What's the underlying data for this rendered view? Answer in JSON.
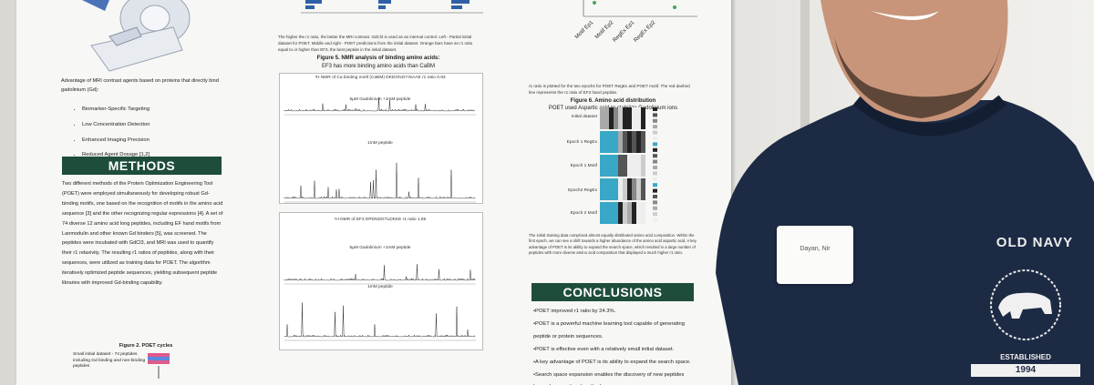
{
  "poster": {
    "intro": {
      "text": "Advantage of MRI contrast agents based on proteins that directly bind gadolinium (Gd):",
      "bullets": [
        "Biomarker-Specific Targeting",
        "Low Concentration Detection",
        "Enhanced Imaging Precision",
        "Reduced Agent Dosage [1,2]"
      ]
    },
    "methods": {
      "heading": "METHODS",
      "text": "Two different methods of the Protein Optimization Engineering Tool (POET) were employed simultaneously for developing robust Gd-binding motifs, one based on the recognition of motifs in the amino acid sequence [3] and the other recognizing regular expressions [4]. A set of 74 diverse 12 amino acid long peptides, including EF hand motifs from Lanmodulin and other known Gd binders [5], was screened. The peptides were incubated with GdCl3, and MRI was used to quantify their r1 relaxivity. The resulting r1 ratios of peptides, along with their sequences, were utilized as training data for POET. The algorithm iteratively optimized peptide sequences, yielding subsequent peptide libraries with improved Gd-binding capability."
    },
    "figure2": {
      "caption": "Figure 2. POET cycles",
      "note": "Small initial dataset - 74 peptides including Gd binding and non-binding peptides"
    },
    "figure4": {
      "caption": "The higher the r1 ratio, the better the MRI contrast. GdCl3 is used as an internal control. Left - Partial initial dataset for POET. Middle and right - POET predictions from the initial dataset. Orange bars have an r1 ratio equal to or higher than EF3, the best peptide in the initial dataset.",
      "axis_labels": [
        "Motif Ep1",
        "Motif Ep2",
        "RegEx Ep1",
        "RegEx Ep2"
      ],
      "note": "r1 ratio is plotted for the two epochs for POET RegEx and POET motif. The red dashed line represents the r1 ratio of EF3 hand peptide."
    },
    "figure5": {
      "title": "Figure 5. NMR analysis of binding amino acids:",
      "subtitle": "EF3 has more binding amino acids than CaBM",
      "panels": [
        {
          "label": "¹H NMR of Ca binding motif (CaBM) DKDGNGYISAAE r1 ratio 0.93",
          "traces": [
            "5µM Gadolinium +1mM peptide",
            "1mM peptide"
          ]
        },
        {
          "label": "¹H NMR of EF3 DPDNDGTLDKKE r1 ratio 1.86",
          "traces": [
            "5µM Gadolinium +1mM peptide",
            "1mM peptide"
          ]
        }
      ]
    },
    "figure6": {
      "title": "Figure 6. Amino acid distribution",
      "subtitle": "POET used Aspartic acid to stabilize Gadolinium ions",
      "rows": [
        "Initial dataset",
        "Epoch 1 RegEx",
        "Epoch 1 Motif",
        "Epoch2 RegEx",
        "Epoch 2 Motif"
      ],
      "note": "The initial training data comprised almost equally distributed amino acid composition. Within the first epoch, we can see a shift towards a higher abundance of the amino acid aspartic acid. A key advantage of POET is its ability to expand the search space, which resulted in a large number of peptides with more diverse amino acid composition that displayed a much higher r1 ratio."
    },
    "conclusions": {
      "heading": "CONCLUSIONS",
      "bullets": [
        "•POET improved r1 ratio by 24.3%.",
        "•POET is a powerful machine learning tool capable of generating peptide or protein sequences.",
        "•POET is effective even with a relatively small initial dataset.",
        "•A key advantage of POET is its ability to expand the search space.",
        "•Search space expansion enables the discovery of new peptides beyond conventional methods."
      ]
    }
  },
  "name_tag": "Dayan, Nir",
  "shirt": {
    "brand": "OLD NAVY",
    "established": "ESTABLISHED",
    "year": "1994"
  }
}
